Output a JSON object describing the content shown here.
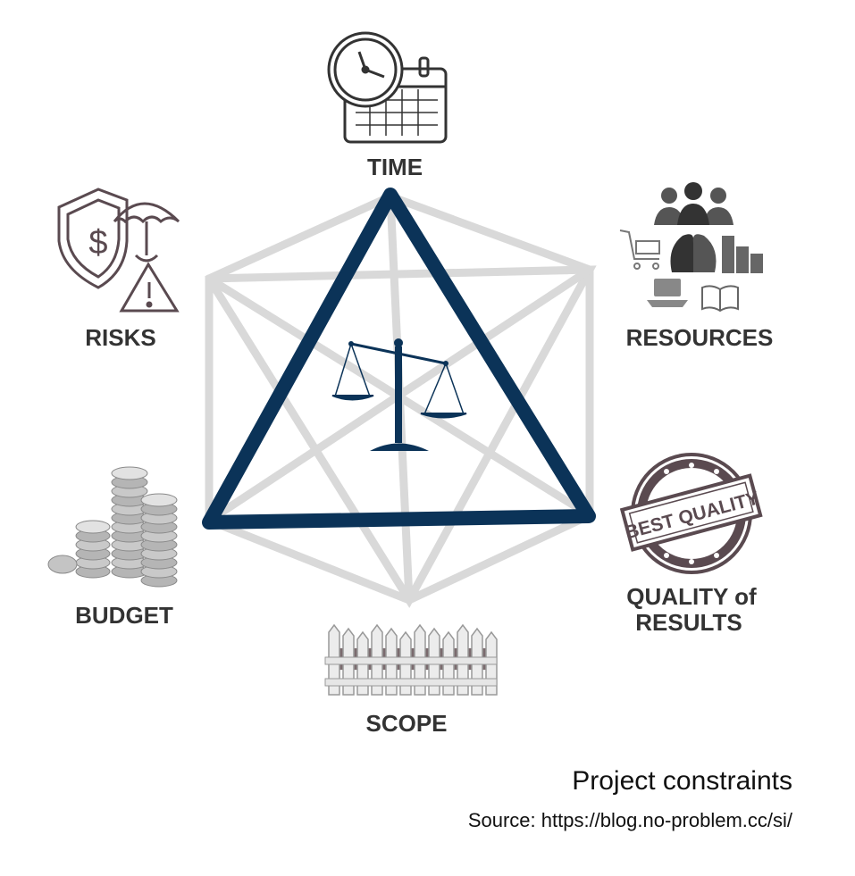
{
  "colors": {
    "triangle": "#0b3358",
    "hexagram": "#d9d9d9",
    "label_text": "#333333",
    "icon": "#5a4a50"
  },
  "nodes": {
    "time": "TIME",
    "resources": "RESOURCES",
    "quality_line1": "QUALITY of",
    "quality_line2": "RESULTS",
    "scope": "SCOPE",
    "budget": "BUDGET",
    "risks": "RISKS"
  },
  "badge": {
    "text": "BEST QUALITY"
  },
  "icons": {
    "time": "clock-calendar-icon",
    "risks": "shield-umbrella-warning-icon",
    "resources": "people-resources-icon",
    "quality": "best-quality-stamp-icon",
    "budget": "coin-stacks-icon",
    "scope": "fence-icon",
    "center": "balance-scale-icon"
  },
  "caption": {
    "title": "Project constraints",
    "source": "Source: https://blog.no-problem.cc/si/"
  }
}
